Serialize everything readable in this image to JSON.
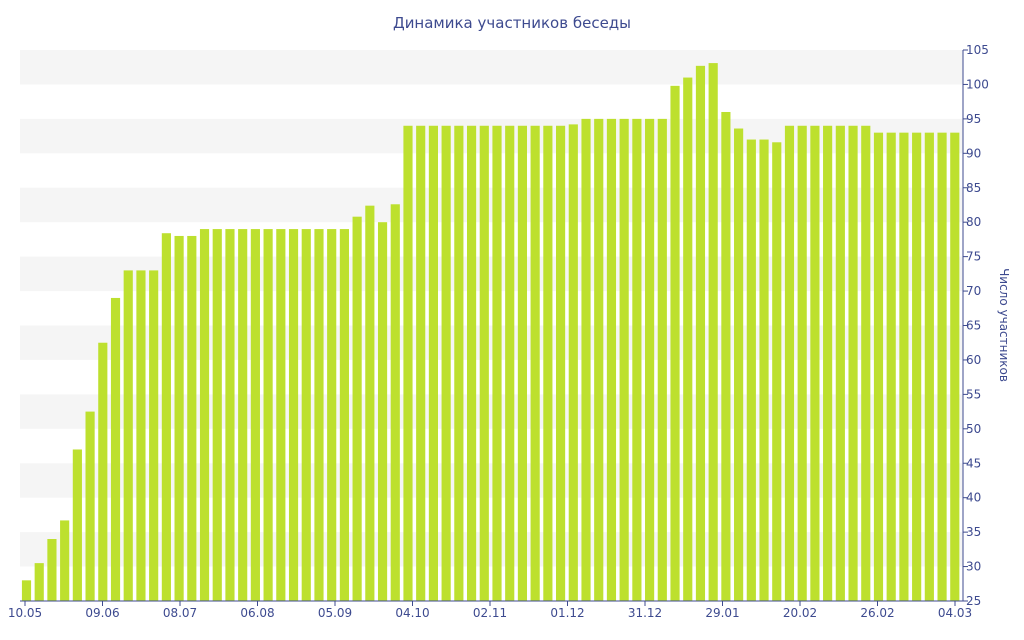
{
  "chart_data": {
    "type": "bar",
    "title": "Динамика участников беседы",
    "ylabel": "Число участников",
    "xlabel": "",
    "ylim": [
      25,
      105
    ],
    "yticks": [
      25,
      30,
      35,
      40,
      45,
      50,
      55,
      60,
      65,
      70,
      75,
      80,
      85,
      90,
      95,
      100,
      105
    ],
    "x_tick_labels": [
      "10.05",
      "09.06",
      "08.07",
      "06.08",
      "05.09",
      "04.10",
      "02.11",
      "01.12",
      "31.12",
      "29.01",
      "20.02",
      "26.02",
      "04.03"
    ],
    "bar_color": "#bde02e",
    "band_color": "#f5f5f5",
    "axis_color": "#3d4a8f",
    "values": [
      28,
      30.5,
      34,
      36.7,
      47,
      52.5,
      62.5,
      69,
      73,
      73,
      73,
      78.4,
      78,
      78,
      79,
      79,
      79,
      79,
      79,
      79,
      79,
      79,
      79,
      79,
      79,
      79,
      80.8,
      82.4,
      80,
      82.6,
      94,
      94,
      94,
      94,
      94,
      94,
      94,
      94,
      94,
      94,
      94,
      94,
      94,
      94.2,
      95,
      95,
      95,
      95,
      95,
      95,
      95,
      99.8,
      101,
      102.7,
      103.1,
      96,
      93.6,
      92,
      92,
      91.6,
      94,
      94,
      94,
      94,
      94,
      94,
      94,
      93,
      93,
      93,
      93,
      93,
      93,
      93
    ]
  }
}
